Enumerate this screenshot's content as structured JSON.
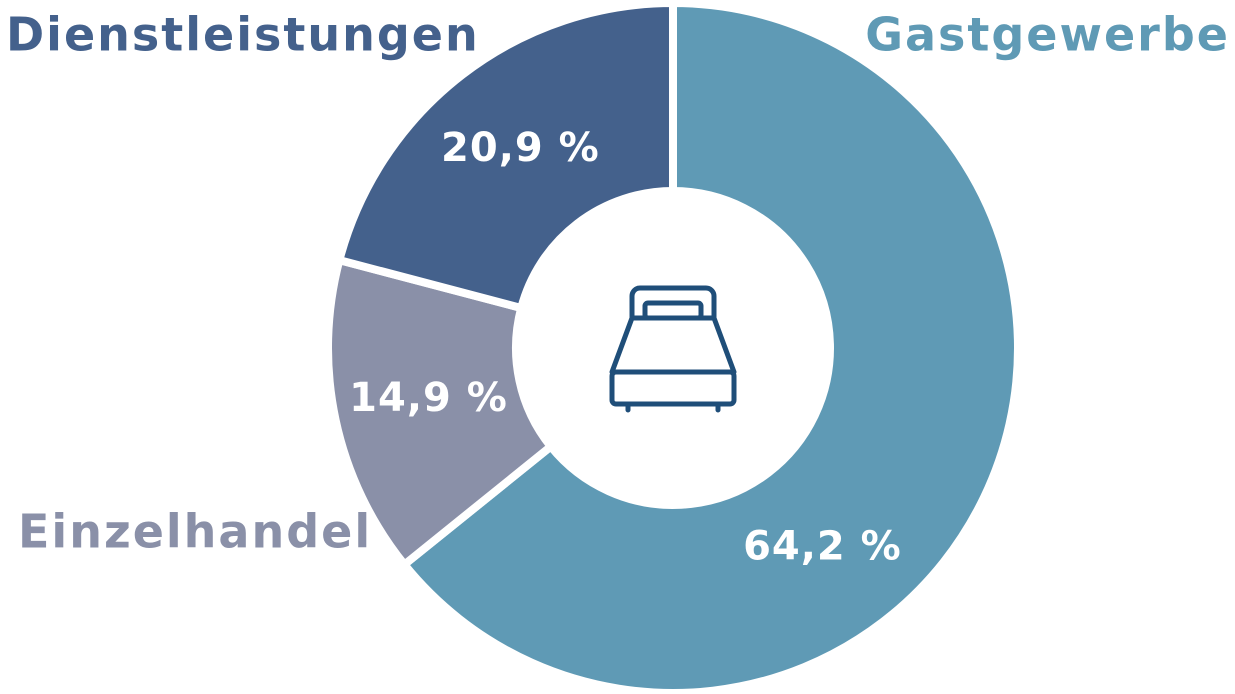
{
  "chart_data": {
    "type": "donut",
    "categories": [
      "Gastgewerbe",
      "Einzelhandel",
      "Dienstleistungen"
    ],
    "values": [
      64.2,
      14.9,
      20.9
    ],
    "value_labels": [
      "64,2 %",
      "14,9 %",
      "20,9 %"
    ],
    "colors": [
      "#5f9ab5",
      "#8a90a8",
      "#44618c"
    ]
  }
}
